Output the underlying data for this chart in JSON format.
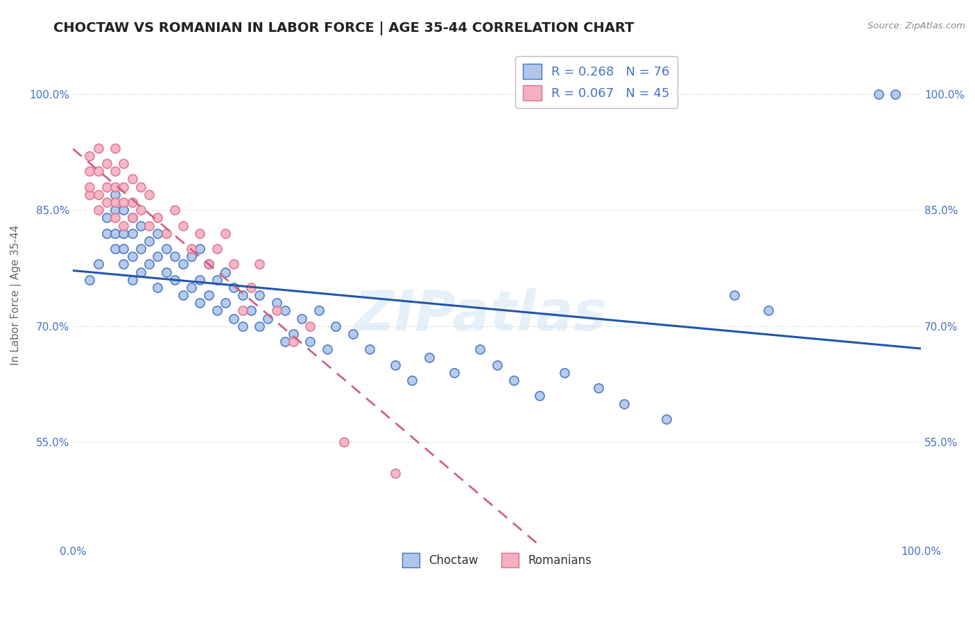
{
  "title": "CHOCTAW VS ROMANIAN IN LABOR FORCE | AGE 35-44 CORRELATION CHART",
  "source_text": "Source: ZipAtlas.com",
  "ylabel": "In Labor Force | Age 35-44",
  "xlim": [
    0.0,
    1.0
  ],
  "ylim": [
    0.42,
    1.06
  ],
  "y_tick_values": [
    0.55,
    0.7,
    0.85,
    1.0
  ],
  "y_tick_labels": [
    "55.0%",
    "70.0%",
    "85.0%",
    "100.0%"
  ],
  "choctaw_color": "#aec6e8",
  "romanian_color": "#f4afc0",
  "choctaw_edge_color": "#4472c4",
  "romanian_edge_color": "#e07090",
  "choctaw_line_color": "#2255aa",
  "romanian_line_color": "#d06080",
  "legend_choctaw_label": "R = 0.268   N = 76",
  "legend_romanian_label": "R = 0.067   N = 45",
  "watermark": "ZIPatlas",
  "choctaw_x": [
    0.02,
    0.03,
    0.04,
    0.04,
    0.05,
    0.05,
    0.05,
    0.05,
    0.06,
    0.06,
    0.06,
    0.06,
    0.07,
    0.07,
    0.07,
    0.07,
    0.08,
    0.08,
    0.08,
    0.09,
    0.09,
    0.1,
    0.1,
    0.1,
    0.11,
    0.11,
    0.12,
    0.12,
    0.13,
    0.13,
    0.14,
    0.14,
    0.15,
    0.15,
    0.15,
    0.16,
    0.16,
    0.17,
    0.17,
    0.18,
    0.18,
    0.19,
    0.19,
    0.2,
    0.2,
    0.21,
    0.22,
    0.22,
    0.23,
    0.24,
    0.25,
    0.25,
    0.26,
    0.27,
    0.28,
    0.29,
    0.3,
    0.31,
    0.33,
    0.35,
    0.38,
    0.4,
    0.42,
    0.45,
    0.48,
    0.5,
    0.52,
    0.55,
    0.58,
    0.62,
    0.65,
    0.7,
    0.78,
    0.82,
    0.95,
    0.97
  ],
  "choctaw_y": [
    0.76,
    0.78,
    0.82,
    0.84,
    0.8,
    0.82,
    0.85,
    0.87,
    0.78,
    0.8,
    0.82,
    0.85,
    0.76,
    0.79,
    0.82,
    0.84,
    0.77,
    0.8,
    0.83,
    0.78,
    0.81,
    0.75,
    0.79,
    0.82,
    0.77,
    0.8,
    0.76,
    0.79,
    0.74,
    0.78,
    0.75,
    0.79,
    0.73,
    0.76,
    0.8,
    0.74,
    0.78,
    0.72,
    0.76,
    0.73,
    0.77,
    0.71,
    0.75,
    0.7,
    0.74,
    0.72,
    0.7,
    0.74,
    0.71,
    0.73,
    0.68,
    0.72,
    0.69,
    0.71,
    0.68,
    0.72,
    0.67,
    0.7,
    0.69,
    0.67,
    0.65,
    0.63,
    0.66,
    0.64,
    0.67,
    0.65,
    0.63,
    0.61,
    0.64,
    0.62,
    0.6,
    0.58,
    0.74,
    0.72,
    1.0,
    1.0
  ],
  "romanian_x": [
    0.02,
    0.02,
    0.02,
    0.02,
    0.03,
    0.03,
    0.03,
    0.03,
    0.04,
    0.04,
    0.04,
    0.05,
    0.05,
    0.05,
    0.05,
    0.05,
    0.06,
    0.06,
    0.06,
    0.06,
    0.07,
    0.07,
    0.07,
    0.08,
    0.08,
    0.09,
    0.09,
    0.1,
    0.11,
    0.12,
    0.13,
    0.14,
    0.15,
    0.16,
    0.17,
    0.18,
    0.19,
    0.2,
    0.21,
    0.22,
    0.24,
    0.26,
    0.28,
    0.32,
    0.38
  ],
  "romanian_y": [
    0.87,
    0.88,
    0.9,
    0.92,
    0.85,
    0.87,
    0.9,
    0.93,
    0.86,
    0.88,
    0.91,
    0.84,
    0.86,
    0.88,
    0.9,
    0.93,
    0.83,
    0.86,
    0.88,
    0.91,
    0.84,
    0.86,
    0.89,
    0.85,
    0.88,
    0.83,
    0.87,
    0.84,
    0.82,
    0.85,
    0.83,
    0.8,
    0.82,
    0.78,
    0.8,
    0.82,
    0.78,
    0.72,
    0.75,
    0.78,
    0.72,
    0.68,
    0.7,
    0.55,
    0.51
  ]
}
